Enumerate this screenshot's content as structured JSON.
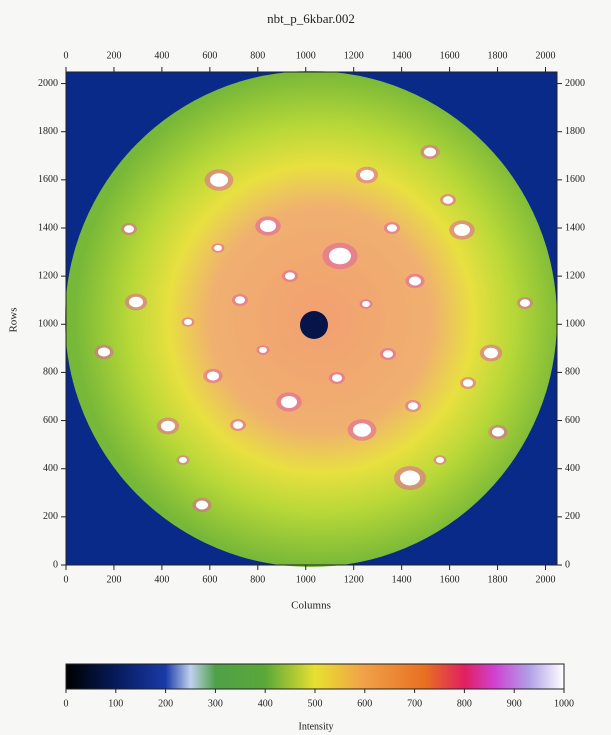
{
  "chart_data": {
    "type": "image",
    "title": "nbt_p_6kbar.002",
    "x_label": "Columns",
    "y_label": "Rows",
    "xlim": [
      0,
      2048
    ],
    "ylim": [
      0,
      2048
    ],
    "xticks": [
      0,
      200,
      400,
      600,
      800,
      1000,
      1200,
      1400,
      1600,
      1800,
      2000
    ],
    "yticks": [
      0,
      200,
      400,
      600,
      800,
      1000,
      1200,
      1400,
      1600,
      1800,
      2000
    ],
    "colorbar": {
      "label": "Intensity",
      "clim": [
        0,
        1000
      ],
      "ticks": [
        0,
        100,
        200,
        300,
        400,
        500,
        600,
        700,
        800,
        900,
        1000
      ]
    }
  }
}
